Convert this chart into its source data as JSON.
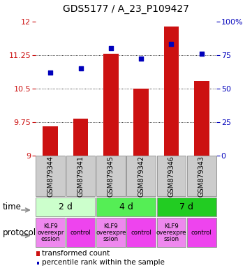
{
  "title": "GDS5177 / A_23_P109427",
  "samples": [
    "GSM879344",
    "GSM879341",
    "GSM879345",
    "GSM879342",
    "GSM879346",
    "GSM879343"
  ],
  "transformed_counts": [
    9.65,
    9.82,
    11.27,
    10.49,
    11.88,
    10.67
  ],
  "percentile_ranks": [
    62,
    65,
    80,
    72,
    83,
    76
  ],
  "ylim_left": [
    9,
    12
  ],
  "ylim_right": [
    0,
    100
  ],
  "yticks_left": [
    9,
    9.75,
    10.5,
    11.25,
    12
  ],
  "yticks_right": [
    0,
    25,
    50,
    75,
    100
  ],
  "ytick_labels_right": [
    "0",
    "25",
    "50",
    "75",
    "100%"
  ],
  "bar_color": "#cc1111",
  "point_color": "#0000bb",
  "bar_bottom": 9,
  "time_groups": [
    {
      "label": "2 d",
      "color": "#ccffcc",
      "cols": [
        0,
        1
      ]
    },
    {
      "label": "4 d",
      "color": "#55ee55",
      "cols": [
        2,
        3
      ]
    },
    {
      "label": "7 d",
      "color": "#22cc22",
      "cols": [
        4,
        5
      ]
    }
  ],
  "protocol_groups": [
    {
      "label": "KLF9\noverexpr\nession",
      "color": "#ee88ee",
      "col": 0
    },
    {
      "label": "control",
      "color": "#ee44ee",
      "col": 1
    },
    {
      "label": "KLF9\noverexpre\nssion",
      "color": "#ee88ee",
      "col": 2
    },
    {
      "label": "control",
      "color": "#ee44ee",
      "col": 3
    },
    {
      "label": "KLF9\noverexpre\nssion",
      "color": "#ee88ee",
      "col": 4
    },
    {
      "label": "control",
      "color": "#ee44ee",
      "col": 5
    }
  ],
  "time_label": "time",
  "protocol_label": "protocol",
  "legend_bar_label": "transformed count",
  "legend_point_label": "percentile rank within the sample",
  "bg_color": "#ffffff",
  "sample_bg_color": "#cccccc",
  "sample_border_color": "#999999",
  "title_fontsize": 10,
  "tick_fontsize": 8,
  "sample_fontsize": 7
}
